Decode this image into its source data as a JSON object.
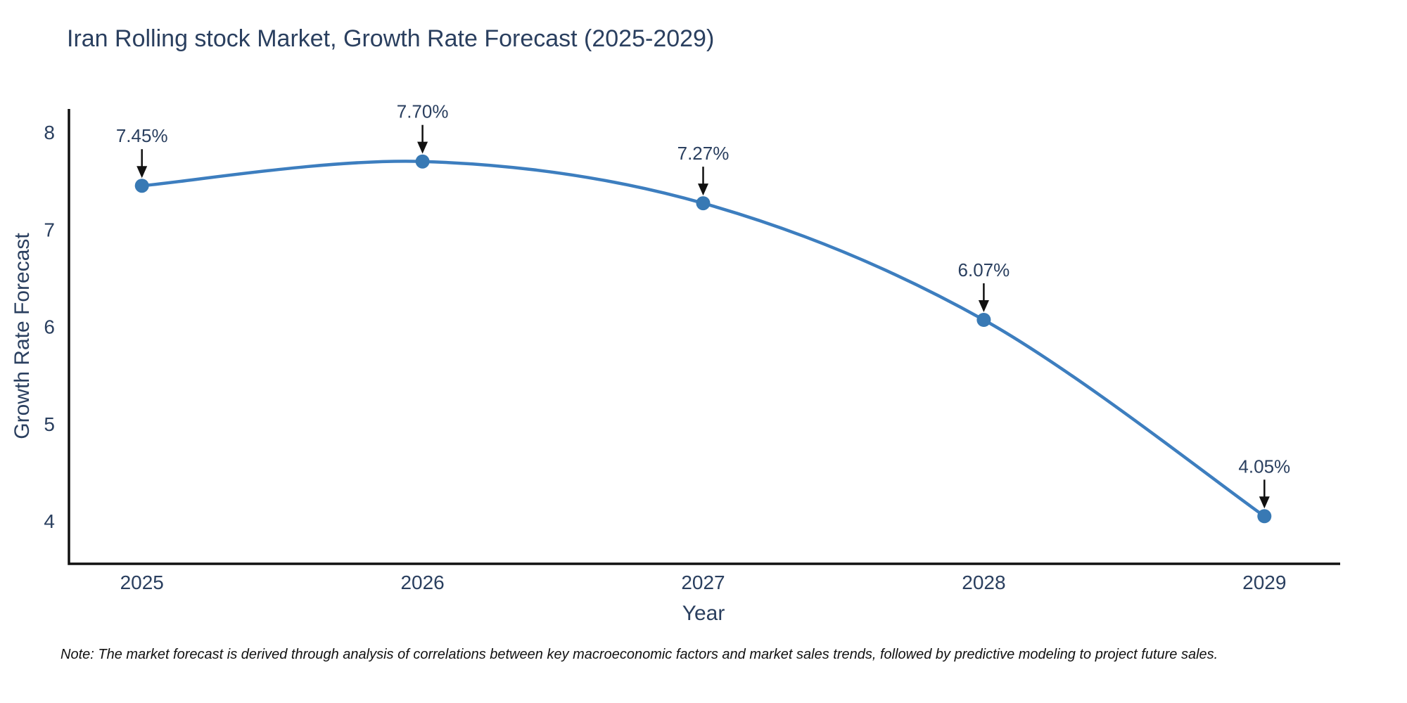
{
  "figure": {
    "title": "Iran Rolling stock Market, Growth Rate Forecast (2025-2029)",
    "note": "Note: The market forecast is derived through analysis of correlations between key macroeconomic factors and market sales trends, followed by predictive modeling to project future sales."
  },
  "chart_data": {
    "type": "line",
    "line_shape": "spline",
    "title": "Iran Rolling stock Market, Growth Rate Forecast (2025-2029)",
    "xlabel": "Year",
    "ylabel": "Growth Rate Forecast",
    "x": [
      2025,
      2026,
      2027,
      2028,
      2029
    ],
    "y": [
      7.45,
      7.7,
      7.27,
      6.07,
      4.05
    ],
    "point_labels": [
      "7.45%",
      "7.70%",
      "7.27%",
      "6.07%",
      "4.05%"
    ],
    "x_tick_labels": [
      "2025",
      "2026",
      "2027",
      "2028",
      "2029"
    ],
    "y_ticks": [
      4,
      5,
      6,
      7,
      8
    ],
    "y_tick_labels": [
      "4",
      "5",
      "6",
      "7",
      "8"
    ],
    "xlim": [
      2024.74,
      2029.27
    ],
    "ylim": [
      3.56,
      8.24
    ],
    "grid": false,
    "legend": false,
    "line_color": "#3d7ebf",
    "marker_color": "#3879b4",
    "annotation_arrow_color": "#111111",
    "text_color": "#2a3f5f",
    "axis_color": "#111111"
  }
}
